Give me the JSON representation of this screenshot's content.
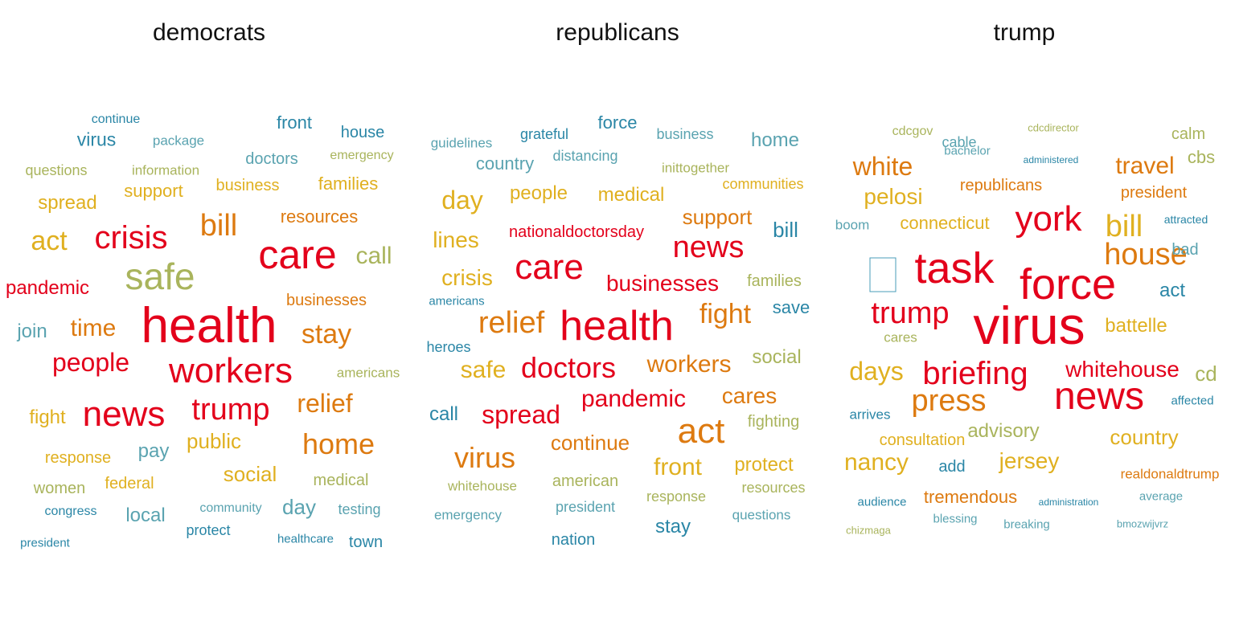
{
  "colors": {
    "red": "#e3001b",
    "orange": "#dd7a10",
    "gold": "#e0b020",
    "olive": "#a9b45c",
    "teal": "#5aa3b0",
    "blue": "#2a86a6"
  },
  "panels": [
    {
      "title": "democrats",
      "words": [
        {
          "text": "continue",
          "color": "blue"
        },
        {
          "text": "front",
          "color": "blue"
        },
        {
          "text": "house",
          "color": "blue"
        },
        {
          "text": "virus",
          "color": "blue"
        },
        {
          "text": "package",
          "color": "teal"
        },
        {
          "text": "doctors",
          "color": "teal"
        },
        {
          "text": "emergency",
          "color": "olive"
        },
        {
          "text": "questions",
          "color": "olive"
        },
        {
          "text": "information",
          "color": "olive"
        },
        {
          "text": "business",
          "color": "gold"
        },
        {
          "text": "families",
          "color": "gold"
        },
        {
          "text": "support",
          "color": "gold"
        },
        {
          "text": "spread",
          "color": "gold"
        },
        {
          "text": "bill",
          "color": "orange"
        },
        {
          "text": "resources",
          "color": "orange"
        },
        {
          "text": "act",
          "color": "gold"
        },
        {
          "text": "crisis",
          "color": "red"
        },
        {
          "text": "care",
          "color": "red"
        },
        {
          "text": "call",
          "color": "olive"
        },
        {
          "text": "pandemic",
          "color": "red"
        },
        {
          "text": "safe",
          "color": "olive"
        },
        {
          "text": "businesses",
          "color": "orange"
        },
        {
          "text": "health",
          "color": "red"
        },
        {
          "text": "join",
          "color": "teal"
        },
        {
          "text": "time",
          "color": "orange"
        },
        {
          "text": "stay",
          "color": "orange"
        },
        {
          "text": "people",
          "color": "red"
        },
        {
          "text": "workers",
          "color": "red"
        },
        {
          "text": "americans",
          "color": "olive"
        },
        {
          "text": "relief",
          "color": "orange"
        },
        {
          "text": "fight",
          "color": "gold"
        },
        {
          "text": "news",
          "color": "red"
        },
        {
          "text": "trump",
          "color": "red"
        },
        {
          "text": "home",
          "color": "orange"
        },
        {
          "text": "public",
          "color": "gold"
        },
        {
          "text": "response",
          "color": "gold"
        },
        {
          "text": "pay",
          "color": "teal"
        },
        {
          "text": "social",
          "color": "gold"
        },
        {
          "text": "women",
          "color": "olive"
        },
        {
          "text": "federal",
          "color": "gold"
        },
        {
          "text": "medical",
          "color": "olive"
        },
        {
          "text": "congress",
          "color": "blue"
        },
        {
          "text": "local",
          "color": "teal"
        },
        {
          "text": "community",
          "color": "teal"
        },
        {
          "text": "day",
          "color": "teal"
        },
        {
          "text": "testing",
          "color": "teal"
        },
        {
          "text": "protect",
          "color": "blue"
        },
        {
          "text": "president",
          "color": "blue"
        },
        {
          "text": "healthcare",
          "color": "blue"
        },
        {
          "text": "town",
          "color": "blue"
        }
      ]
    },
    {
      "title": "republicans",
      "words": [
        {
          "text": "force",
          "color": "blue"
        },
        {
          "text": "grateful",
          "color": "blue"
        },
        {
          "text": "guidelines",
          "color": "teal"
        },
        {
          "text": "business",
          "color": "teal"
        },
        {
          "text": "home",
          "color": "teal"
        },
        {
          "text": "country",
          "color": "teal"
        },
        {
          "text": "distancing",
          "color": "teal"
        },
        {
          "text": "inittogether",
          "color": "olive"
        },
        {
          "text": "communities",
          "color": "gold"
        },
        {
          "text": "day",
          "color": "gold"
        },
        {
          "text": "people",
          "color": "gold"
        },
        {
          "text": "medical",
          "color": "gold"
        },
        {
          "text": "support",
          "color": "orange"
        },
        {
          "text": "lines",
          "color": "gold"
        },
        {
          "text": "nationaldoctorsday",
          "color": "red"
        },
        {
          "text": "bill",
          "color": "blue"
        },
        {
          "text": "news",
          "color": "red"
        },
        {
          "text": "care",
          "color": "red"
        },
        {
          "text": "crisis",
          "color": "gold"
        },
        {
          "text": "businesses",
          "color": "red"
        },
        {
          "text": "families",
          "color": "olive"
        },
        {
          "text": "americans",
          "color": "blue"
        },
        {
          "text": "relief",
          "color": "orange"
        },
        {
          "text": "health",
          "color": "red"
        },
        {
          "text": "fight",
          "color": "orange"
        },
        {
          "text": "save",
          "color": "blue"
        },
        {
          "text": "heroes",
          "color": "blue"
        },
        {
          "text": "safe",
          "color": "gold"
        },
        {
          "text": "doctors",
          "color": "red"
        },
        {
          "text": "workers",
          "color": "orange"
        },
        {
          "text": "social",
          "color": "olive"
        },
        {
          "text": "pandemic",
          "color": "red"
        },
        {
          "text": "cares",
          "color": "orange"
        },
        {
          "text": "call",
          "color": "blue"
        },
        {
          "text": "spread",
          "color": "red"
        },
        {
          "text": "act",
          "color": "orange"
        },
        {
          "text": "fighting",
          "color": "olive"
        },
        {
          "text": "virus",
          "color": "orange"
        },
        {
          "text": "continue",
          "color": "orange"
        },
        {
          "text": "front",
          "color": "gold"
        },
        {
          "text": "protect",
          "color": "gold"
        },
        {
          "text": "whitehouse",
          "color": "olive"
        },
        {
          "text": "american",
          "color": "olive"
        },
        {
          "text": "resources",
          "color": "olive"
        },
        {
          "text": "response",
          "color": "olive"
        },
        {
          "text": "president",
          "color": "teal"
        },
        {
          "text": "emergency",
          "color": "teal"
        },
        {
          "text": "questions",
          "color": "teal"
        },
        {
          "text": "stay",
          "color": "blue"
        },
        {
          "text": "nation",
          "color": "blue"
        }
      ]
    },
    {
      "title": "trump",
      "words": [
        {
          "text": "cdcgov",
          "color": "olive"
        },
        {
          "text": "cdcdirector",
          "color": "olive"
        },
        {
          "text": "calm",
          "color": "olive"
        },
        {
          "text": "bachelor",
          "color": "teal"
        },
        {
          "text": "cable",
          "color": "teal"
        },
        {
          "text": "administered",
          "color": "blue"
        },
        {
          "text": "cbs",
          "color": "olive"
        },
        {
          "text": "white",
          "color": "orange"
        },
        {
          "text": "travel",
          "color": "orange"
        },
        {
          "text": "republicans",
          "color": "orange"
        },
        {
          "text": "pelosi",
          "color": "gold"
        },
        {
          "text": "president",
          "color": "orange"
        },
        {
          "text": "boom",
          "color": "teal"
        },
        {
          "text": "connecticut",
          "color": "gold"
        },
        {
          "text": "york",
          "color": "red"
        },
        {
          "text": "bill",
          "color": "gold"
        },
        {
          "text": "attracted",
          "color": "blue"
        },
        {
          "text": "house",
          "color": "orange"
        },
        {
          "text": "bad",
          "color": "teal"
        },
        {
          "text": "task",
          "color": "red"
        },
        {
          "text": "force",
          "color": "red"
        },
        {
          "text": "act",
          "color": "blue"
        },
        {
          "text": "trump",
          "color": "red"
        },
        {
          "text": "virus",
          "color": "red"
        },
        {
          "text": "cares",
          "color": "olive"
        },
        {
          "text": "battelle",
          "color": "gold"
        },
        {
          "text": "days",
          "color": "gold"
        },
        {
          "text": "briefing",
          "color": "red"
        },
        {
          "text": "whitehouse",
          "color": "red"
        },
        {
          "text": "cd",
          "color": "olive"
        },
        {
          "text": "press",
          "color": "orange"
        },
        {
          "text": "news",
          "color": "red"
        },
        {
          "text": "arrives",
          "color": "blue"
        },
        {
          "text": "affected",
          "color": "blue"
        },
        {
          "text": "advisory",
          "color": "olive"
        },
        {
          "text": "consultation",
          "color": "gold"
        },
        {
          "text": "country",
          "color": "gold"
        },
        {
          "text": "nancy",
          "color": "gold"
        },
        {
          "text": "add",
          "color": "blue"
        },
        {
          "text": "jersey",
          "color": "gold"
        },
        {
          "text": "realdonaldtrump",
          "color": "orange"
        },
        {
          "text": "tremendous",
          "color": "orange"
        },
        {
          "text": "average",
          "color": "teal"
        },
        {
          "text": "audience",
          "color": "blue"
        },
        {
          "text": "administration",
          "color": "blue"
        },
        {
          "text": "blessing",
          "color": "teal"
        },
        {
          "text": "breaking",
          "color": "teal"
        },
        {
          "text": "bmozwijvrz",
          "color": "teal"
        },
        {
          "text": "chizmaga",
          "color": "olive"
        }
      ]
    }
  ]
}
